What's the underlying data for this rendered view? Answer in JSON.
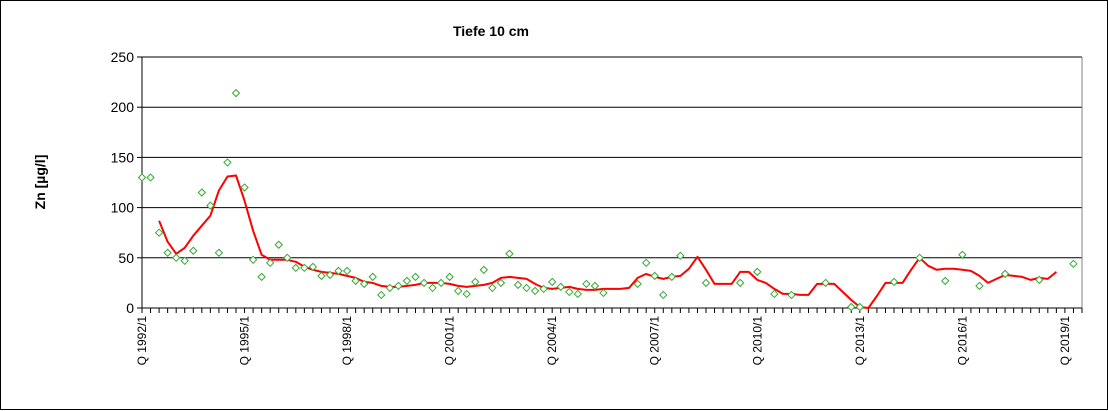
{
  "chart_data": {
    "type": "scatter",
    "title": "Tiefe  10 cm",
    "ylabel": "Zn [µg/l]",
    "xlabel": "",
    "ylim": [
      0,
      250
    ],
    "yticks": [
      0,
      50,
      100,
      150,
      200,
      250
    ],
    "xlim": [
      1992.0,
      2019.5
    ],
    "xtick_labels": [
      "Q 1992/1",
      "Q 1995/1",
      "Q 1998/1",
      "Q 2001/1",
      "Q 2004/1",
      "Q 2007/1",
      "Q 2010/1",
      "Q 2013/1",
      "Q 2016/1",
      "Q 2019/1"
    ],
    "xtick_values": [
      1992,
      1995,
      1998,
      2001,
      2004,
      2007,
      2010,
      2013,
      2016,
      2019
    ],
    "grid": "horizontal",
    "marker_color": "#33aa33",
    "line_color": "#ff0000",
    "series": [
      {
        "marker": "diamond",
        "x": [
          1992.0,
          1992.25,
          1992.5,
          1992.75,
          1993.0,
          1993.25,
          1993.5,
          1993.75,
          1994.0,
          1994.25,
          1994.5,
          1994.75,
          1995.0,
          1995.25,
          1995.5,
          1995.75,
          1996.0,
          1996.25,
          1996.5,
          1996.75,
          1997.0,
          1997.25,
          1997.5,
          1997.75,
          1998.0,
          1998.25,
          1998.5,
          1998.75,
          1999.0,
          1999.25,
          1999.5,
          1999.75,
          2000.0,
          2000.25,
          2000.5,
          2000.75,
          2001.0,
          2001.25,
          2001.5,
          2001.75,
          2002.0,
          2002.25,
          2002.5,
          2002.75,
          2003.0,
          2003.25,
          2003.5,
          2003.75,
          2004.0,
          2004.25,
          2004.5,
          2004.75,
          2005.0,
          2005.25,
          2005.5,
          2006.5,
          2006.75,
          2007.0,
          2007.25,
          2007.5,
          2007.75,
          2008.5,
          2009.5,
          2010.0,
          2010.5,
          2011.0,
          2012.0,
          2012.75,
          2013.0,
          2014.0,
          2014.75,
          2015.5,
          2016.0,
          2016.5,
          2017.25,
          2018.25,
          2019.25
        ],
        "y": [
          130,
          130,
          75,
          55,
          50,
          47,
          57,
          115,
          102,
          55,
          145,
          214,
          120,
          48,
          31,
          45,
          63,
          50,
          40,
          40,
          41,
          32,
          33,
          37,
          37,
          27,
          24,
          31,
          13,
          20,
          22,
          27,
          31,
          25,
          20,
          25,
          31,
          17,
          14,
          26,
          38,
          20,
          25,
          54,
          23,
          20,
          17,
          19,
          26,
          21,
          16,
          14,
          24,
          22,
          15,
          24,
          45,
          32,
          13,
          31,
          52,
          25,
          25,
          36,
          14,
          13,
          25,
          1,
          1,
          26,
          50,
          27,
          53,
          22,
          34,
          28,
          44
        ]
      },
      {
        "marker": "none",
        "x": [
          1992.5,
          1992.75,
          1993.0,
          1993.25,
          1993.5,
          1993.75,
          1994.0,
          1994.25,
          1994.5,
          1994.75,
          1995.0,
          1995.25,
          1995.5,
          1995.75,
          1996.0,
          1996.25,
          1996.5,
          1996.75,
          1997.0,
          1997.25,
          1997.5,
          1997.75,
          1998.0,
          1998.25,
          1998.5,
          1998.75,
          1999.0,
          1999.25,
          1999.5,
          1999.75,
          2000.0,
          2000.25,
          2000.5,
          2000.75,
          2001.0,
          2001.25,
          2001.5,
          2001.75,
          2002.0,
          2002.25,
          2002.5,
          2002.75,
          2003.0,
          2003.25,
          2003.5,
          2003.75,
          2004.0,
          2004.25,
          2004.5,
          2004.75,
          2005.0,
          2005.25,
          2005.5,
          2005.75,
          2006.0,
          2006.25,
          2006.5,
          2006.75,
          2007.0,
          2007.25,
          2007.5,
          2007.75,
          2008.0,
          2008.25,
          2008.5,
          2008.75,
          2009.0,
          2009.25,
          2009.5,
          2009.75,
          2010.0,
          2010.25,
          2010.5,
          2010.75,
          2011.0,
          2011.25,
          2011.5,
          2011.75,
          2012.0,
          2012.25,
          2012.5,
          2012.75,
          2013.0,
          2013.25,
          2013.5,
          2013.75,
          2014.0,
          2014.25,
          2014.5,
          2014.75,
          2015.0,
          2015.25,
          2015.5,
          2015.75,
          2016.0,
          2016.25,
          2016.5,
          2016.75,
          2017.0,
          2017.25,
          2017.5,
          2017.75,
          2018.0,
          2018.25,
          2018.5,
          2018.75
        ],
        "y": [
          87,
          66,
          54,
          60,
          72,
          82,
          92,
          117,
          131,
          132,
          107,
          77,
          53,
          48,
          48,
          48,
          46,
          41,
          38,
          36,
          35,
          34,
          32,
          30,
          26,
          25,
          22,
          21,
          21,
          22,
          23,
          25,
          25,
          25,
          24,
          22,
          21,
          22,
          23,
          25,
          30,
          31,
          30,
          29,
          24,
          20,
          19,
          20,
          21,
          19,
          18,
          18,
          19,
          19,
          19,
          20,
          30,
          34,
          31,
          29,
          31,
          32,
          39,
          51,
          38,
          24,
          24,
          24,
          36,
          36,
          28,
          25,
          19,
          14,
          14,
          13,
          13,
          24,
          24,
          24,
          16,
          8,
          1,
          -2,
          12,
          25,
          25,
          25,
          38,
          50,
          42,
          38,
          39,
          39,
          38,
          37,
          32,
          25,
          29,
          33,
          32,
          31,
          28,
          30,
          29,
          36
        ]
      }
    ]
  }
}
